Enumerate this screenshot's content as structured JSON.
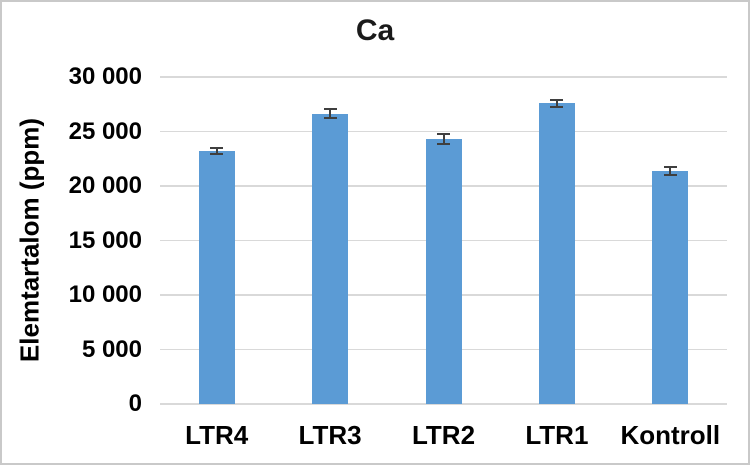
{
  "chart_data": {
    "type": "bar",
    "title": "Ca",
    "xlabel": "",
    "ylabel": "Elemtartalom (ppm)",
    "categories": [
      "LTR4",
      "LTR3",
      "LTR2",
      "LTR1",
      "Kontroll"
    ],
    "values": [
      23200,
      26650,
      24300,
      27600,
      21400
    ],
    "error_bars": [
      400,
      500,
      550,
      400,
      450
    ],
    "ylim": [
      0,
      30000
    ],
    "ytick_step": 5000,
    "ytick_labels": [
      "0",
      "5 000",
      "10 000",
      "15 000",
      "20 000",
      "25 000",
      "30 000"
    ],
    "grid": true,
    "legend_position": "none",
    "bar_color": "#5b9bd5",
    "error_bar_color": "#3f3f3f",
    "gridline_color": "#d9d9d9",
    "text_color": "#000000"
  }
}
